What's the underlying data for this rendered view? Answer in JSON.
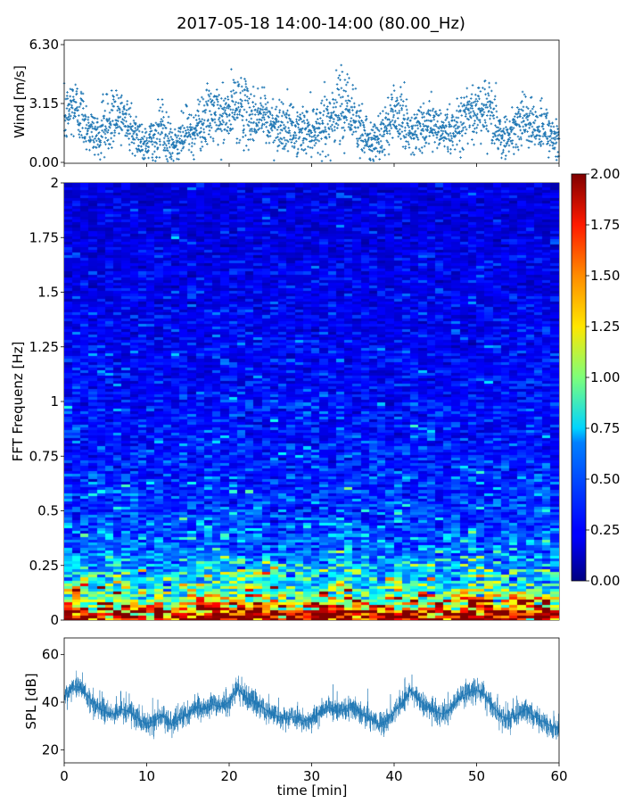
{
  "title": "2017-05-18 14:00-14:00 (80.00_Hz)",
  "chart_data": [
    {
      "type": "scatter",
      "name": "wind",
      "ylabel": "Wind [m/s]",
      "ylim": [
        0,
        6.3
      ],
      "yticks": [
        0.0,
        3.15,
        6.3
      ],
      "ytick_labels": [
        "0.00",
        "3.15",
        "6.30"
      ],
      "xlim": [
        0,
        60
      ],
      "grid": false,
      "color": "#1f77b4",
      "marker": "+",
      "mean_trend": {
        "x": [
          0,
          1,
          2,
          3,
          4,
          5,
          6,
          7,
          8,
          9,
          10,
          11,
          12,
          13,
          14,
          15,
          16,
          17,
          18,
          19,
          20,
          21,
          22,
          23,
          24,
          25,
          26,
          27,
          28,
          29,
          30,
          31,
          32,
          33,
          34,
          35,
          36,
          37,
          38,
          39,
          40,
          41,
          42,
          43,
          44,
          45,
          46,
          47,
          48,
          49,
          50,
          51,
          52,
          53,
          54,
          55,
          56,
          57,
          58,
          59,
          60
        ],
        "y": [
          2.2,
          3.1,
          2.6,
          1.8,
          1.4,
          1.9,
          2.3,
          2.4,
          2.1,
          1.3,
          0.9,
          1.5,
          1.8,
          0.8,
          1.2,
          1.6,
          2.0,
          2.3,
          2.6,
          2.3,
          2.5,
          3.2,
          2.6,
          2.4,
          2.6,
          2.0,
          2.1,
          1.9,
          1.6,
          1.7,
          1.8,
          1.9,
          2.3,
          2.6,
          2.7,
          2.6,
          1.8,
          1.1,
          1.2,
          1.8,
          2.6,
          2.2,
          1.7,
          1.8,
          2.2,
          1.9,
          1.7,
          1.8,
          2.0,
          2.6,
          2.8,
          3.0,
          2.4,
          1.4,
          1.6,
          2.1,
          2.4,
          1.8,
          1.9,
          1.5,
          1.3
        ]
      },
      "spread": 1.0,
      "n_points": 2400
    },
    {
      "type": "heatmap",
      "name": "spectrogram",
      "ylabel": "FFT Frequenz [Hz]",
      "xlim": [
        0,
        60
      ],
      "ylim": [
        0,
        2
      ],
      "yticks": [
        0,
        0.25,
        0.5,
        0.75,
        1,
        1.25,
        1.5,
        1.75,
        2
      ],
      "ytick_labels": [
        "0",
        "0.25",
        "0.5",
        "0.75",
        "1",
        "1.25",
        "1.5",
        "1.75",
        "2"
      ],
      "n_time_bins": 60,
      "n_freq_bins": 160,
      "colormap": "jet",
      "vmin": 0,
      "vmax": 2,
      "colorbar_ticks": [
        0.0,
        0.25,
        0.5,
        0.75,
        1.0,
        1.25,
        1.5,
        1.75,
        2.0
      ],
      "colorbar_tick_labels": [
        "0.00",
        "0.25",
        "0.50",
        "0.75",
        "1.00",
        "1.25",
        "1.50",
        "1.75",
        "2.00"
      ],
      "frequency_profile": {
        "freq": [
          0.0,
          0.02,
          0.05,
          0.08,
          0.12,
          0.15,
          0.2,
          0.3,
          0.4,
          0.5,
          0.7,
          1.0,
          1.3,
          1.6,
          2.0
        ],
        "level": [
          2.0,
          1.75,
          1.4,
          1.1,
          0.85,
          0.7,
          0.6,
          0.45,
          0.4,
          0.36,
          0.3,
          0.26,
          0.23,
          0.2,
          0.18
        ]
      }
    },
    {
      "type": "line",
      "name": "spl",
      "xlabel": "time [min]",
      "ylabel": "SPL [dB]",
      "xlim": [
        0,
        60
      ],
      "ylim": [
        14.5,
        67
      ],
      "xticks": [
        0,
        10,
        20,
        30,
        40,
        50,
        60
      ],
      "xtick_labels": [
        "0",
        "10",
        "20",
        "30",
        "40",
        "50",
        "60"
      ],
      "yticks": [
        20,
        40,
        60
      ],
      "ytick_labels": [
        "20",
        "40",
        "60"
      ],
      "grid": false,
      "color": "#1f77b4",
      "x": [
        0,
        1,
        2,
        3,
        4,
        5,
        6,
        7,
        8,
        9,
        10,
        11,
        12,
        13,
        14,
        15,
        16,
        17,
        18,
        19,
        20,
        21,
        22,
        23,
        24,
        25,
        26,
        27,
        28,
        29,
        30,
        31,
        32,
        33,
        34,
        35,
        36,
        37,
        38,
        39,
        40,
        41,
        42,
        43,
        44,
        45,
        46,
        47,
        48,
        49,
        50,
        51,
        52,
        53,
        54,
        55,
        56,
        57,
        58,
        59,
        60
      ],
      "y": [
        42,
        47,
        46,
        42,
        38,
        36,
        35,
        37,
        36,
        33,
        31,
        32,
        35,
        30,
        33,
        35,
        38,
        37,
        39,
        38,
        40,
        46,
        42,
        40,
        38,
        35,
        34,
        33,
        34,
        32,
        33,
        36,
        38,
        36,
        37,
        38,
        35,
        33,
        31,
        32,
        36,
        40,
        45,
        41,
        38,
        36,
        35,
        38,
        42,
        44,
        45,
        43,
        38,
        34,
        33,
        35,
        37,
        34,
        32,
        30,
        29
      ],
      "noise_amplitude": 4.0,
      "n_samples": 3600
    }
  ]
}
